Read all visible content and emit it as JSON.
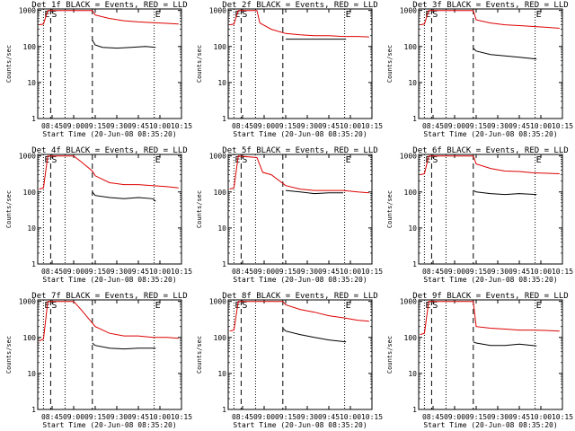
{
  "colors": {
    "events": "#000000",
    "lld": "#dd0000",
    "axis": "#000000",
    "background": "#ffffff"
  },
  "axes": {
    "ylabel": "Counts/sec",
    "xlabel": "Start Time (20-Jun-08 08:35:20)",
    "yticks": [
      {
        "value": 1,
        "label": "1"
      },
      {
        "value": 10,
        "label": "10"
      },
      {
        "value": 100,
        "label": "100"
      },
      {
        "value": 1000,
        "label": "1000"
      }
    ],
    "ylim": [
      1,
      1100
    ],
    "xticks": [
      {
        "value": 10,
        "label": "08:45"
      },
      {
        "value": 25,
        "label": "09:00"
      },
      {
        "value": 40,
        "label": "09:15"
      },
      {
        "value": 55,
        "label": "09:30"
      },
      {
        "value": 70,
        "label": "09:45"
      },
      {
        "value": 85,
        "label": "10:00"
      },
      {
        "value": 100,
        "label": "10:15"
      }
    ],
    "xlim": [
      0,
      100
    ],
    "y_scale": "log",
    "grid": false
  },
  "chart_data": [
    {
      "type": "line",
      "title": "Det_1f BLACK = Events, RED = LLD",
      "markers": [
        {
          "x": 4,
          "label": "E",
          "style": "dotted"
        },
        {
          "x": 9,
          "label": "S",
          "style": "dashed"
        },
        {
          "x": 19,
          "style": "dotted"
        },
        {
          "x": 38,
          "style": "dashed"
        },
        {
          "x": 81,
          "label": "E",
          "style": "dotted"
        }
      ],
      "series": [
        {
          "role": "lld",
          "points": [
            [
              1,
              400
            ],
            [
              4,
              420
            ],
            [
              7,
              1000
            ],
            [
              38,
              1000
            ],
            [
              40,
              750
            ],
            [
              50,
              600
            ],
            [
              60,
              520
            ],
            [
              70,
              480
            ],
            [
              80,
              460
            ],
            [
              90,
              440
            ],
            [
              98,
              420
            ]
          ]
        },
        {
          "role": "events",
          "points": [
            [
              38,
              150
            ],
            [
              40,
              110
            ],
            [
              45,
              95
            ],
            [
              55,
              90
            ],
            [
              65,
              95
            ],
            [
              75,
              100
            ],
            [
              82,
              95
            ]
          ]
        }
      ]
    },
    {
      "type": "line",
      "title": "Det_2f BLACK = Events, RED = LLD",
      "markers": [
        {
          "x": 4,
          "label": "E",
          "style": "dotted"
        },
        {
          "x": 9,
          "label": "S",
          "style": "dashed"
        },
        {
          "x": 19,
          "style": "dotted"
        },
        {
          "x": 38,
          "style": "dashed"
        },
        {
          "x": 81,
          "label": "E",
          "style": "dotted"
        }
      ],
      "series": [
        {
          "role": "lld",
          "points": [
            [
              1,
              400
            ],
            [
              4,
              420
            ],
            [
              7,
              1000
            ],
            [
              20,
              1000
            ],
            [
              22,
              450
            ],
            [
              30,
              300
            ],
            [
              40,
              230
            ],
            [
              50,
              210
            ],
            [
              60,
              200
            ],
            [
              70,
              200
            ],
            [
              80,
              190
            ],
            [
              90,
              190
            ],
            [
              98,
              185
            ]
          ]
        },
        {
          "role": "events",
          "points": [
            [
              40,
              160
            ],
            [
              50,
              160
            ],
            [
              60,
              160
            ],
            [
              70,
              160
            ],
            [
              82,
              160
            ]
          ]
        }
      ]
    },
    {
      "type": "line",
      "title": "Det_3f BLACK = Events, RED = LLD",
      "markers": [
        {
          "x": 4,
          "label": "E",
          "style": "dotted"
        },
        {
          "x": 9,
          "label": "S",
          "style": "dashed"
        },
        {
          "x": 19,
          "style": "dotted"
        },
        {
          "x": 38,
          "style": "dashed"
        },
        {
          "x": 81,
          "label": "E",
          "style": "dotted"
        }
      ],
      "series": [
        {
          "role": "lld",
          "points": [
            [
              1,
              400
            ],
            [
              4,
              420
            ],
            [
              7,
              1000
            ],
            [
              38,
              1000
            ],
            [
              40,
              550
            ],
            [
              50,
              450
            ],
            [
              60,
              400
            ],
            [
              70,
              380
            ],
            [
              80,
              360
            ],
            [
              90,
              340
            ],
            [
              98,
              320
            ]
          ]
        },
        {
          "role": "events",
          "points": [
            [
              38,
              90
            ],
            [
              40,
              75
            ],
            [
              50,
              60
            ],
            [
              60,
              55
            ],
            [
              70,
              50
            ],
            [
              82,
              45
            ]
          ]
        }
      ]
    },
    {
      "type": "line",
      "title": "Det_4f BLACK = Events, RED = LLD",
      "markers": [
        {
          "x": 4,
          "label": "E",
          "style": "dotted"
        },
        {
          "x": 9,
          "label": "S",
          "style": "dashed"
        },
        {
          "x": 19,
          "style": "dotted"
        },
        {
          "x": 38,
          "style": "dashed"
        },
        {
          "x": 81,
          "label": "E",
          "style": "dotted"
        }
      ],
      "series": [
        {
          "role": "lld",
          "points": [
            [
              1,
              120
            ],
            [
              4,
              130
            ],
            [
              7,
              1000
            ],
            [
              25,
              1000
            ],
            [
              30,
              700
            ],
            [
              38,
              380
            ],
            [
              40,
              280
            ],
            [
              50,
              180
            ],
            [
              60,
              160
            ],
            [
              70,
              160
            ],
            [
              80,
              150
            ],
            [
              90,
              140
            ],
            [
              98,
              130
            ]
          ]
        },
        {
          "role": "events",
          "points": [
            [
              38,
              100
            ],
            [
              40,
              80
            ],
            [
              50,
              70
            ],
            [
              60,
              65
            ],
            [
              70,
              70
            ],
            [
              80,
              65
            ],
            [
              82,
              55
            ]
          ]
        }
      ]
    },
    {
      "type": "line",
      "title": "Det_5f BLACK = Events, RED = LLD",
      "markers": [
        {
          "x": 4,
          "label": "E",
          "style": "dotted"
        },
        {
          "x": 9,
          "label": "S",
          "style": "dashed"
        },
        {
          "x": 19,
          "style": "dotted"
        },
        {
          "x": 38,
          "style": "dashed"
        },
        {
          "x": 81,
          "label": "E",
          "style": "dotted"
        }
      ],
      "series": [
        {
          "role": "lld",
          "points": [
            [
              1,
              120
            ],
            [
              4,
              130
            ],
            [
              7,
              1000
            ],
            [
              20,
              900
            ],
            [
              24,
              350
            ],
            [
              30,
              300
            ],
            [
              40,
              150
            ],
            [
              50,
              120
            ],
            [
              60,
              110
            ],
            [
              70,
              110
            ],
            [
              80,
              110
            ],
            [
              90,
              100
            ],
            [
              98,
              95
            ]
          ]
        },
        {
          "role": "events",
          "points": [
            [
              40,
              110
            ],
            [
              50,
              100
            ],
            [
              60,
              90
            ],
            [
              70,
              95
            ],
            [
              80,
              95
            ]
          ]
        }
      ]
    },
    {
      "type": "line",
      "title": "Det_6f BLACK = Events, RED = LLD",
      "markers": [
        {
          "x": 4,
          "label": "E",
          "style": "dotted"
        },
        {
          "x": 9,
          "label": "S",
          "style": "dashed"
        },
        {
          "x": 19,
          "style": "dotted"
        },
        {
          "x": 38,
          "style": "dashed"
        },
        {
          "x": 81,
          "label": "E",
          "style": "dotted"
        }
      ],
      "series": [
        {
          "role": "lld",
          "points": [
            [
              1,
              300
            ],
            [
              4,
              320
            ],
            [
              7,
              1000
            ],
            [
              38,
              1000
            ],
            [
              40,
              600
            ],
            [
              50,
              450
            ],
            [
              60,
              380
            ],
            [
              70,
              370
            ],
            [
              80,
              340
            ],
            [
              90,
              330
            ],
            [
              98,
              320
            ]
          ]
        },
        {
          "role": "events",
          "points": [
            [
              38,
              110
            ],
            [
              40,
              100
            ],
            [
              50,
              90
            ],
            [
              60,
              85
            ],
            [
              70,
              90
            ],
            [
              82,
              85
            ]
          ]
        }
      ]
    },
    {
      "type": "line",
      "title": "Det_7f BLACK = Events, RED = LLD",
      "markers": [
        {
          "x": 4,
          "label": "E",
          "style": "dotted"
        },
        {
          "x": 9,
          "label": "S",
          "style": "dashed"
        },
        {
          "x": 19,
          "style": "dotted"
        },
        {
          "x": 38,
          "style": "dashed"
        },
        {
          "x": 81,
          "label": "E",
          "style": "dotted"
        }
      ],
      "series": [
        {
          "role": "lld",
          "points": [
            [
              1,
              80
            ],
            [
              4,
              90
            ],
            [
              7,
              1000
            ],
            [
              25,
              1000
            ],
            [
              30,
              600
            ],
            [
              38,
              250
            ],
            [
              40,
              200
            ],
            [
              50,
              130
            ],
            [
              60,
              110
            ],
            [
              70,
              110
            ],
            [
              80,
              100
            ],
            [
              90,
              100
            ],
            [
              98,
              95
            ]
          ]
        },
        {
          "role": "events",
          "points": [
            [
              38,
              70
            ],
            [
              40,
              60
            ],
            [
              50,
              50
            ],
            [
              60,
              48
            ],
            [
              70,
              50
            ],
            [
              82,
              50
            ]
          ]
        }
      ]
    },
    {
      "type": "line",
      "title": "Det_8f BLACK = Events, RED = LLD",
      "markers": [
        {
          "x": 4,
          "label": "E",
          "style": "dotted"
        },
        {
          "x": 9,
          "label": "S",
          "style": "dashed"
        },
        {
          "x": 19,
          "style": "dotted"
        },
        {
          "x": 38,
          "style": "dashed"
        },
        {
          "x": 81,
          "label": "E",
          "style": "dotted"
        }
      ],
      "series": [
        {
          "role": "lld",
          "points": [
            [
              1,
              150
            ],
            [
              4,
              160
            ],
            [
              7,
              1000
            ],
            [
              38,
              1000
            ],
            [
              40,
              800
            ],
            [
              50,
              600
            ],
            [
              60,
              500
            ],
            [
              70,
              400
            ],
            [
              80,
              350
            ],
            [
              90,
              300
            ],
            [
              98,
              280
            ]
          ]
        },
        {
          "role": "events",
          "points": [
            [
              38,
              180
            ],
            [
              40,
              150
            ],
            [
              50,
              120
            ],
            [
              60,
              100
            ],
            [
              70,
              85
            ],
            [
              82,
              75
            ]
          ]
        }
      ]
    },
    {
      "type": "line",
      "title": "Det_9f BLACK = Events, RED = LLD",
      "markers": [
        {
          "x": 4,
          "label": "E",
          "style": "dotted"
        },
        {
          "x": 9,
          "label": "S",
          "style": "dashed"
        },
        {
          "x": 19,
          "style": "dotted"
        },
        {
          "x": 38,
          "style": "dashed"
        },
        {
          "x": 81,
          "label": "E",
          "style": "dotted"
        }
      ],
      "series": [
        {
          "role": "lld",
          "points": [
            [
              1,
              120
            ],
            [
              4,
              130
            ],
            [
              7,
              1000
            ],
            [
              38,
              1000
            ],
            [
              40,
              200
            ],
            [
              50,
              180
            ],
            [
              60,
              170
            ],
            [
              70,
              160
            ],
            [
              80,
              160
            ],
            [
              90,
              155
            ],
            [
              98,
              150
            ]
          ]
        },
        {
          "role": "events",
          "points": [
            [
              38,
              75
            ],
            [
              40,
              70
            ],
            [
              50,
              60
            ],
            [
              60,
              60
            ],
            [
              70,
              65
            ],
            [
              82,
              58
            ]
          ]
        }
      ]
    }
  ]
}
